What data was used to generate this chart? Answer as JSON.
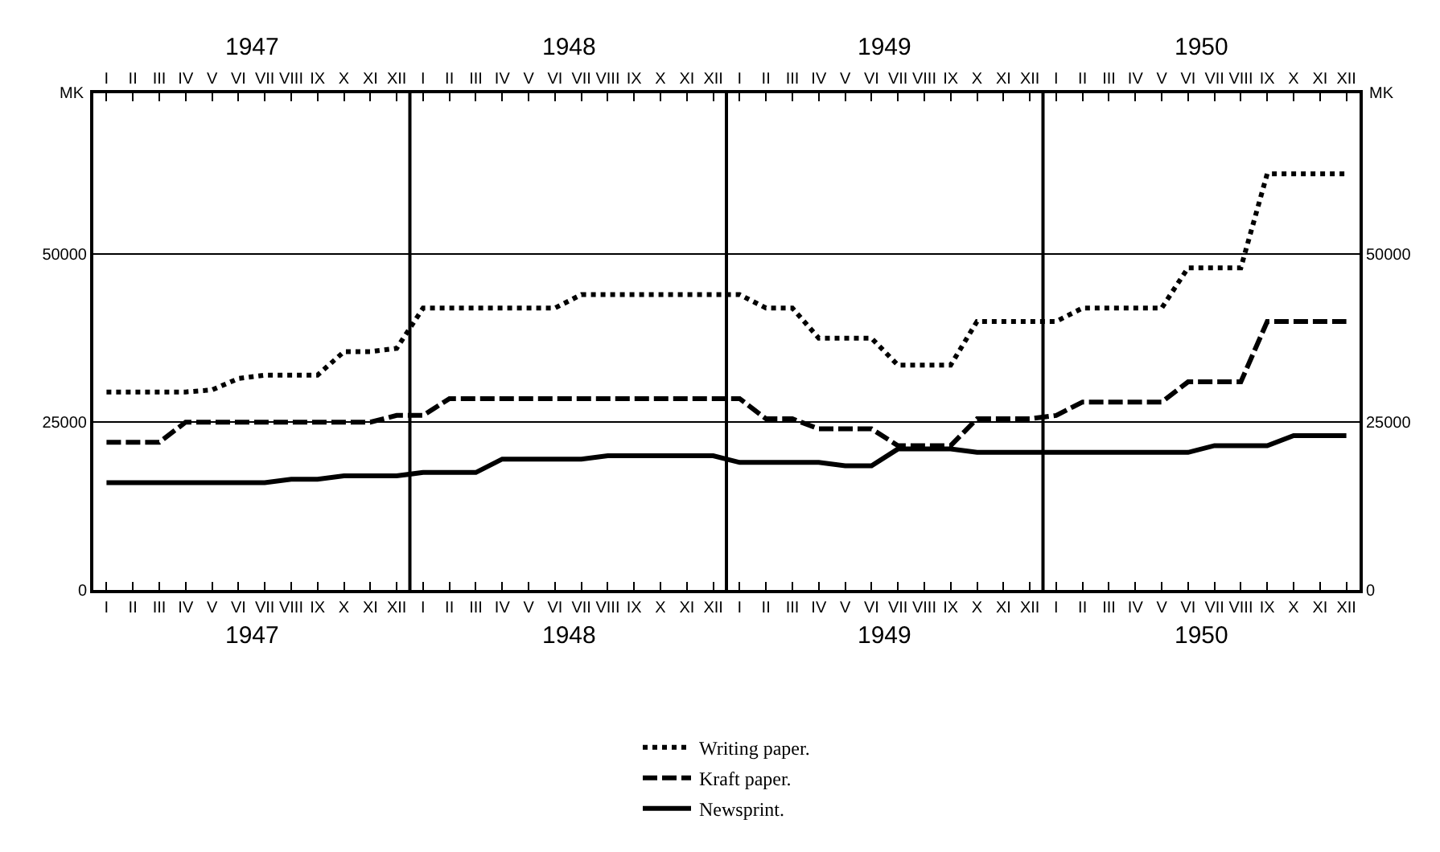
{
  "chart_data": {
    "type": "line",
    "ylabel": "MK",
    "y2label": "MK",
    "categories": [
      "I",
      "II",
      "III",
      "IV",
      "V",
      "VI",
      "VII",
      "VIII",
      "IX",
      "X",
      "XI",
      "XII",
      "I",
      "II",
      "III",
      "IV",
      "V",
      "VI",
      "VII",
      "VIII",
      "IX",
      "X",
      "XI",
      "XII",
      "I",
      "II",
      "III",
      "IV",
      "V",
      "VI",
      "VII",
      "VIII",
      "IX",
      "X",
      "XI",
      "XII",
      "I",
      "II",
      "III",
      "IV",
      "V",
      "VI",
      "VII",
      "VIII",
      "IX",
      "X",
      "XI",
      "XII"
    ],
    "series": [
      {
        "name": "Writing paper.",
        "color": "#000000",
        "line_style": "dotted",
        "values": [
          29500,
          29500,
          29500,
          29500,
          29800,
          31500,
          32000,
          32000,
          32000,
          35500,
          35500,
          36000,
          42000,
          42000,
          42000,
          42000,
          42000,
          42000,
          44000,
          44000,
          44000,
          44000,
          44000,
          44000,
          44000,
          42000,
          42000,
          37500,
          37500,
          37500,
          33500,
          33500,
          33500,
          40000,
          40000,
          40000,
          40000,
          42000,
          42000,
          42000,
          42000,
          48000,
          48000,
          48000,
          62000,
          62000,
          62000,
          62000
        ]
      },
      {
        "name": "Kraft paper.",
        "color": "#000000",
        "line_style": "dashed",
        "values": [
          22000,
          22000,
          22000,
          25000,
          25000,
          25000,
          25000,
          25000,
          25000,
          25000,
          25000,
          26000,
          26000,
          28500,
          28500,
          28500,
          28500,
          28500,
          28500,
          28500,
          28500,
          28500,
          28500,
          28500,
          28500,
          25500,
          25500,
          24000,
          24000,
          24000,
          21500,
          21500,
          21500,
          25500,
          25500,
          25500,
          26000,
          28000,
          28000,
          28000,
          28000,
          31000,
          31000,
          31000,
          40000,
          40000,
          40000,
          40000
        ]
      },
      {
        "name": "Newsprint.",
        "color": "#000000",
        "line_style": "solid",
        "values": [
          16000,
          16000,
          16000,
          16000,
          16000,
          16000,
          16000,
          16500,
          16500,
          17000,
          17000,
          17000,
          17500,
          17500,
          17500,
          19500,
          19500,
          19500,
          19500,
          20000,
          20000,
          20000,
          20000,
          20000,
          19000,
          19000,
          19000,
          19000,
          18500,
          18500,
          21000,
          21000,
          21000,
          20500,
          20500,
          20500,
          20500,
          20500,
          20500,
          20500,
          20500,
          20500,
          21500,
          21500,
          21500,
          23000,
          23000,
          23000
        ]
      }
    ],
    "ylim": [
      0,
      74000
    ],
    "yticks": [
      0,
      25000,
      50000
    ],
    "y2lim": [
      0,
      74000
    ],
    "y2ticks": [
      0,
      25000,
      50000
    ],
    "grid": "y",
    "annotations": [
      "1947",
      "1948",
      "1949",
      "1950",
      "1947",
      "1948",
      "1949",
      "1950"
    ],
    "legend": "bottom",
    "marker": "none"
  }
}
